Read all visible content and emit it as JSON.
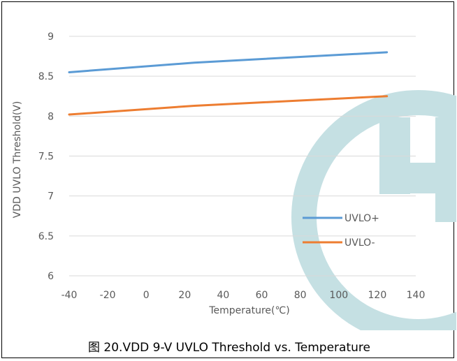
{
  "caption": "图 20.VDD 9-V UVLO Threshold vs. Temperature",
  "chart_data": {
    "type": "line",
    "title": "",
    "xlabel": "Temperature(℃)",
    "ylabel": "VDD UVLO Threshold(V)",
    "xlim": [
      -40,
      140
    ],
    "ylim": [
      6,
      9
    ],
    "x_ticks": [
      "-40",
      "-20",
      "0",
      "20",
      "40",
      "60",
      "80",
      "100",
      "120",
      "140"
    ],
    "y_ticks": [
      "6",
      "6.5",
      "7",
      "7.5",
      "8",
      "8.5",
      "9"
    ],
    "grid": "horizontal",
    "legend_position": "right",
    "series": [
      {
        "name": "UVLO+",
        "color": "#5b9bd5",
        "x": [
          -40,
          25,
          125
        ],
        "y": [
          8.55,
          8.67,
          8.8
        ]
      },
      {
        "name": "UVLO-",
        "color": "#ed7d31",
        "x": [
          -40,
          25,
          125
        ],
        "y": [
          8.02,
          8.13,
          8.25
        ]
      }
    ]
  },
  "watermark_color": "#c5e0e3"
}
